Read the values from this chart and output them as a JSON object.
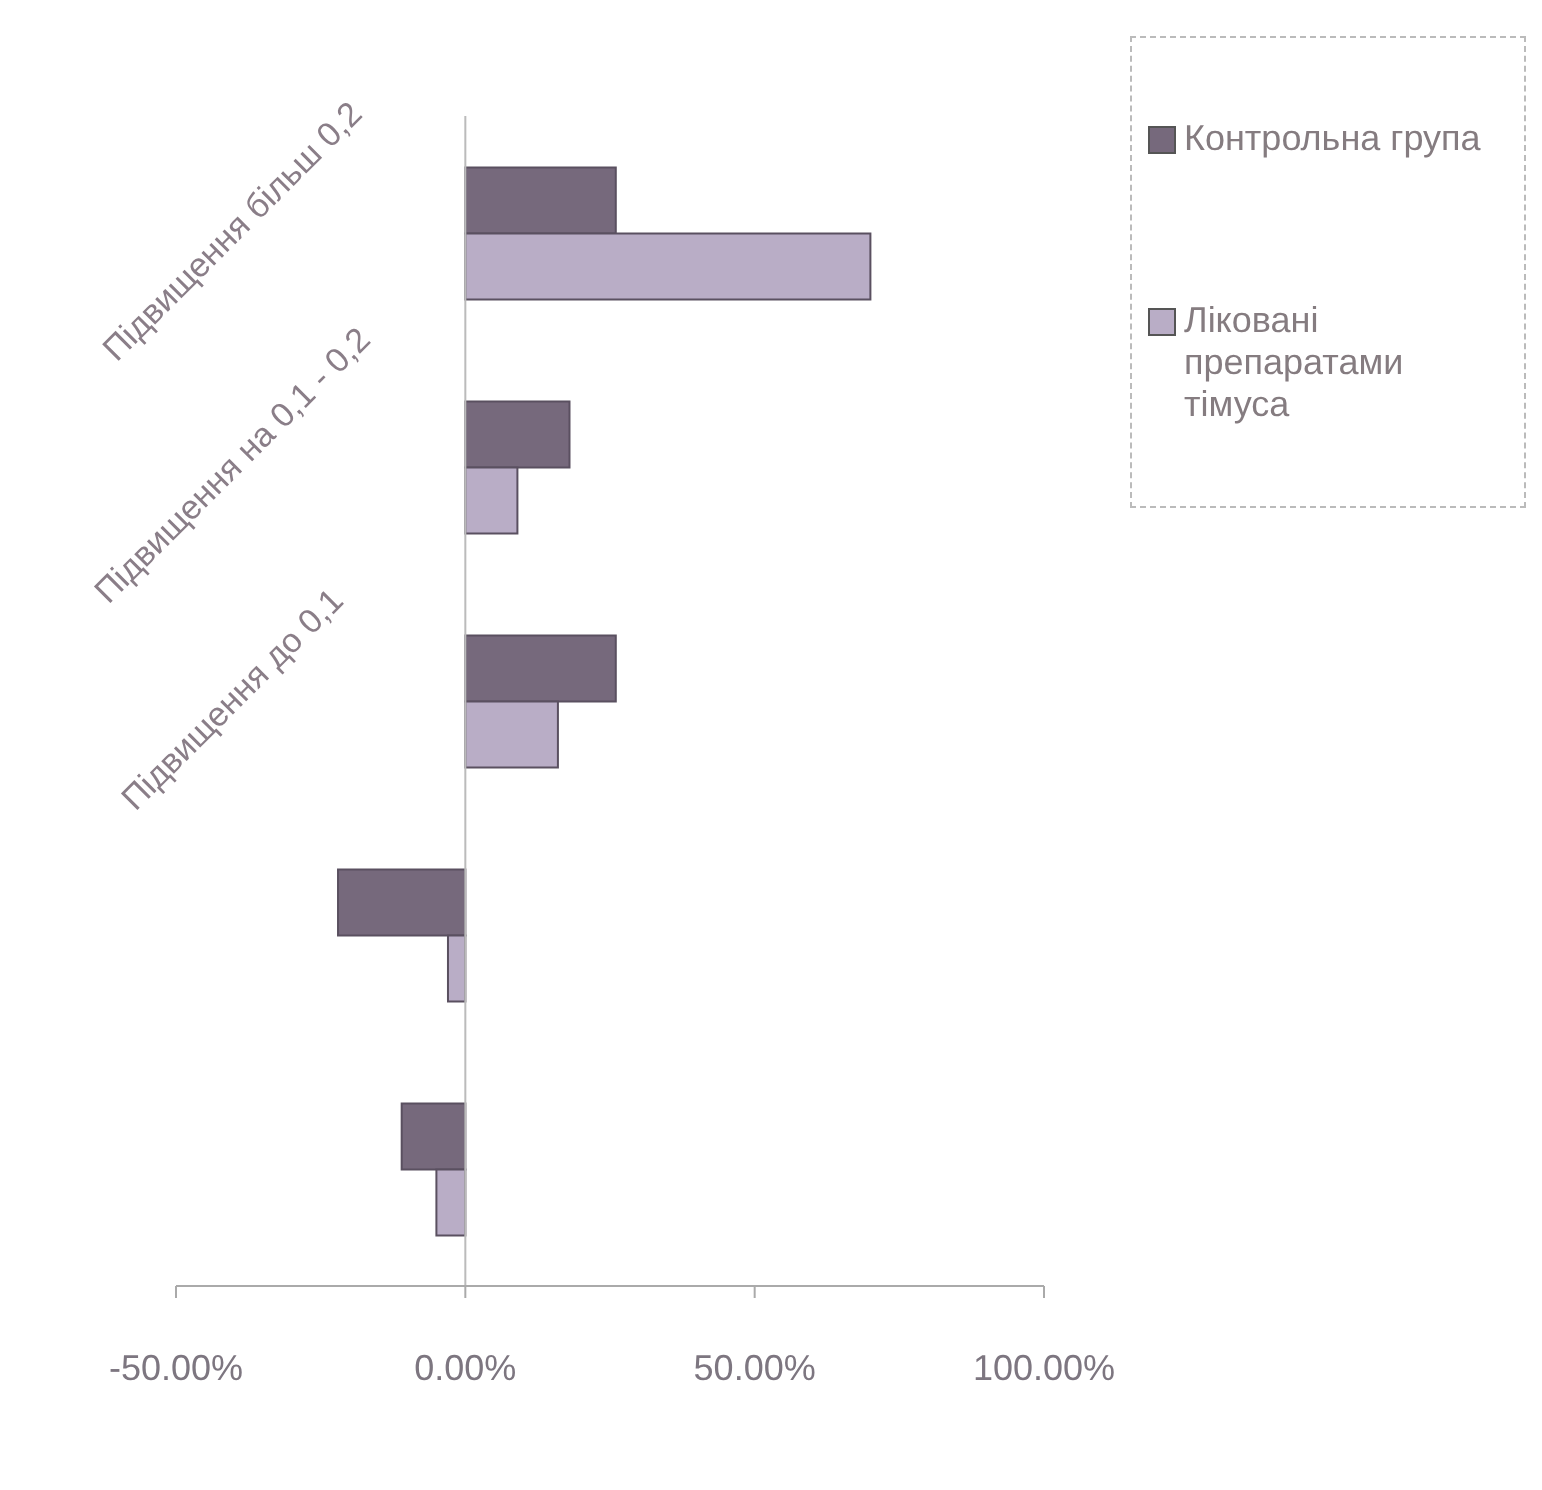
{
  "chart_data": {
    "type": "bar",
    "orientation": "horizontal",
    "categories": [
      "Підвищення більш 0,2",
      "Підвищення на 0,1 - 0,2",
      "Підвищення до 0,1",
      null,
      null
    ],
    "series": [
      {
        "name": "Контрольна група",
        "color": "#76697c",
        "values": [
          26,
          18,
          26,
          -22,
          -11
        ]
      },
      {
        "name": "Ліковані препаратами тімуса",
        "color": "#b9adc6",
        "values": [
          70,
          9,
          16,
          -3,
          -5
        ]
      }
    ],
    "xlim": [
      -50,
      100
    ],
    "xticks": [
      {
        "value": -50,
        "label": "-50.00%"
      },
      {
        "value": 0,
        "label": "0.00%"
      },
      {
        "value": 50,
        "label": "50.00%"
      },
      {
        "value": 100,
        "label": "100.00%"
      }
    ],
    "grid": false,
    "legend": "top right"
  }
}
